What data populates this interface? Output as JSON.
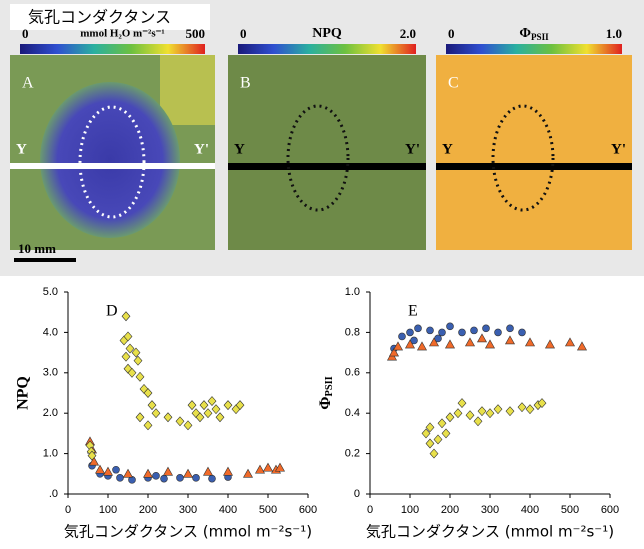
{
  "images": {
    "title": "気孔コンダクタンス",
    "scale": "10 mm",
    "panels": [
      {
        "label": "A",
        "cb_min": "0",
        "cb_unit": "mmol H₂O m⁻²s⁻¹",
        "cb_max": "500",
        "left": "Y",
        "right": "Y'"
      },
      {
        "label": "B",
        "cb_min": "0",
        "cb_unit": "NPQ",
        "cb_max": "2.0",
        "left": "Y",
        "right": "Y'"
      },
      {
        "label": "C",
        "cb_min": "0",
        "cb_unit": {
          "symbol": "Φ",
          "subscript": "PSII"
        },
        "cb_max": "1.0",
        "left": "Y",
        "right": "Y'"
      }
    ]
  },
  "chart_data": [
    {
      "type": "scatter",
      "panel": "D",
      "xlabel": "気孔コンダクタンス (mmol m⁻²s⁻¹)",
      "ylabel": "NPQ",
      "xlim": [
        0,
        600
      ],
      "xticks": [
        0,
        100,
        200,
        300,
        400,
        500,
        600
      ],
      "ylim": [
        0,
        5
      ],
      "yticks": [
        {
          "value": 0,
          "label": ".0"
        },
        {
          "value": 1,
          "label": "1.0"
        },
        {
          "value": 2,
          "label": "2.0"
        },
        {
          "value": 3,
          "label": "3.0"
        },
        {
          "value": 4,
          "label": "4.0"
        },
        {
          "value": 5,
          "label": "5.0"
        }
      ],
      "series": [
        {
          "color": "#3a5fb0",
          "marker": "circle",
          "x": [
            60,
            80,
            100,
            130,
            160,
            200,
            240,
            280,
            320,
            360,
            400,
            120,
            220
          ],
          "values": [
            0.7,
            0.5,
            0.45,
            0.4,
            0.35,
            0.4,
            0.38,
            0.4,
            0.4,
            0.38,
            0.42,
            0.6,
            0.45
          ]
        },
        {
          "color": "#f06a2a",
          "marker": "triangle",
          "x": [
            55,
            60,
            65,
            80,
            100,
            150,
            200,
            250,
            300,
            350,
            400,
            450,
            480,
            500,
            520,
            530
          ],
          "values": [
            1.3,
            1.1,
            0.8,
            0.6,
            0.55,
            0.5,
            0.5,
            0.55,
            0.5,
            0.55,
            0.55,
            0.5,
            0.6,
            0.65,
            0.6,
            0.65
          ]
        },
        {
          "color": "#e8e04a",
          "marker": "diamond",
          "x": [
            55,
            58,
            60,
            140,
            145,
            150,
            155,
            145,
            150,
            160,
            170,
            175,
            180,
            190,
            200,
            210,
            180,
            200,
            220,
            250,
            280,
            300,
            320,
            340,
            350,
            360,
            370,
            380,
            400,
            420,
            430,
            330,
            310
          ],
          "values": [
            1.2,
            1.05,
            0.95,
            3.8,
            4.4,
            3.9,
            3.6,
            3.4,
            3.1,
            3.0,
            3.5,
            3.3,
            2.9,
            2.6,
            2.5,
            2.2,
            1.9,
            1.7,
            2.0,
            1.9,
            1.8,
            1.7,
            2.0,
            2.2,
            2.0,
            2.3,
            2.1,
            1.9,
            2.2,
            2.1,
            2.2,
            1.9,
            2.2
          ]
        }
      ]
    },
    {
      "type": "scatter",
      "panel": "E",
      "xlabel": "気孔コンダクタンス (mmol m⁻²s⁻¹)",
      "ylabel": {
        "symbol": "Φ",
        "subscript": "PSII"
      },
      "xlim": [
        0,
        600
      ],
      "xticks": [
        0,
        100,
        200,
        300,
        400,
        500,
        600
      ],
      "ylim": [
        0,
        1
      ],
      "yticks": [
        0,
        0.2,
        0.4,
        0.6,
        0.8,
        {
          "value": 1,
          "label": "1.0"
        }
      ],
      "series": [
        {
          "color": "#3a5fb0",
          "marker": "circle",
          "x": [
            60,
            80,
            100,
            120,
            150,
            180,
            200,
            230,
            260,
            290,
            320,
            350,
            380,
            110,
            170
          ],
          "values": [
            0.72,
            0.78,
            0.8,
            0.82,
            0.81,
            0.8,
            0.83,
            0.8,
            0.81,
            0.82,
            0.8,
            0.82,
            0.8,
            0.76,
            0.77
          ]
        },
        {
          "color": "#f06a2a",
          "marker": "triangle",
          "x": [
            55,
            60,
            70,
            100,
            130,
            160,
            200,
            250,
            300,
            350,
            400,
            450,
            500,
            530,
            280
          ],
          "values": [
            0.68,
            0.7,
            0.73,
            0.74,
            0.73,
            0.75,
            0.74,
            0.75,
            0.74,
            0.76,
            0.75,
            0.74,
            0.75,
            0.73,
            0.77
          ]
        },
        {
          "color": "#e8e04a",
          "marker": "diamond",
          "x": [
            140,
            150,
            160,
            170,
            150,
            180,
            200,
            220,
            190,
            250,
            280,
            300,
            320,
            350,
            380,
            400,
            420,
            430,
            270,
            230
          ],
          "values": [
            0.3,
            0.25,
            0.2,
            0.27,
            0.33,
            0.35,
            0.38,
            0.4,
            0.3,
            0.39,
            0.41,
            0.4,
            0.42,
            0.41,
            0.43,
            0.42,
            0.44,
            0.45,
            0.36,
            0.45
          ]
        }
      ]
    }
  ]
}
